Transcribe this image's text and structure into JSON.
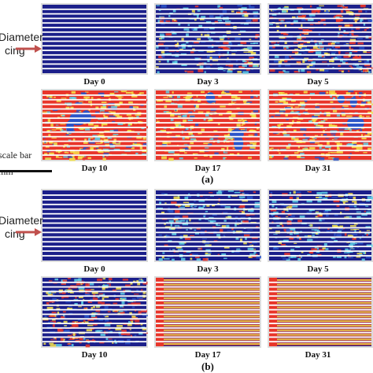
{
  "side_label_lines": [
    "Diameter",
    "cing"
  ],
  "scale_bar_lines": [
    "scale bar",
    "mm"
  ],
  "sections": [
    {
      "label": "(a)",
      "panels": [
        {
          "day": "Day 0",
          "fill": "blank"
        },
        {
          "day": "Day 3",
          "fill": "low"
        },
        {
          "day": "Day 5",
          "fill": "medium"
        },
        {
          "day": "Day 10",
          "fill": "high"
        },
        {
          "day": "Day 17",
          "fill": "high"
        },
        {
          "day": "Day 31",
          "fill": "high"
        }
      ]
    },
    {
      "label": "(b)",
      "panels": [
        {
          "day": "Day 0",
          "fill": "blank"
        },
        {
          "day": "Day 3",
          "fill": "low"
        },
        {
          "day": "Day 5",
          "fill": "low"
        },
        {
          "day": "Day 10",
          "fill": "medium"
        },
        {
          "day": "Day 17",
          "fill": "lines"
        },
        {
          "day": "Day 31",
          "fill": "lines"
        }
      ]
    }
  ],
  "colors": {
    "navy": "#1b1f8a",
    "stripe": "#ffffff",
    "red": "#e8352a",
    "yellow": "#f4e34a",
    "cyan": "#5fd0e6",
    "blue": "#2a55c8",
    "arrow": "#c0504d"
  }
}
